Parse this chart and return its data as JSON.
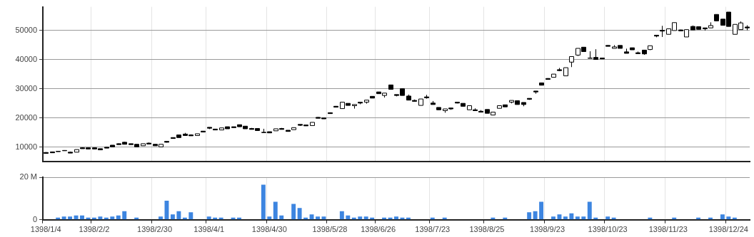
{
  "chart_data": [
    {
      "type": "candlestick",
      "color": "#000000",
      "colors": [
        "#000000",
        "#000000",
        "#000000",
        "#000000",
        "#000000",
        "#ffffff",
        "#000000",
        "#000000",
        "#000000",
        "#000000",
        "#000000",
        "#000000",
        "#000000",
        "#000000",
        "#000000",
        "#000000",
        "#ffffff",
        "#000000",
        "#000000",
        "#ffffff",
        "#000000",
        "#000000",
        "#000000",
        "#000000",
        "#000000",
        "#ffffff",
        "#000000",
        "#000000",
        "#000000",
        "#ffffff",
        "#000000",
        "#000000",
        "#000000",
        "#000000",
        "#000000",
        "#000000",
        "#000000",
        "#000000",
        "#ffffff",
        "#000000",
        "#000000",
        "#ffffff",
        "#000000",
        "#000000",
        "#ffffff",
        "#000000",
        "#000000",
        "#000000",
        "#000000",
        "#ffffff",
        "#000000",
        "#ffffff",
        "#000000",
        "#ffffff",
        "#000000",
        "#000000",
        "#ffffff",
        "#000000",
        "#000000",
        "#000000",
        "#000000",
        "#000000",
        "#ffffff",
        "#000000",
        "#000000",
        "#000000",
        "#ffffff",
        "#000000",
        "#000000",
        "#000000",
        "#ffffff",
        "#000000",
        "#000000",
        "#000000",
        "#ffffff",
        "#ffffff",
        "#000000",
        "#ffffff",
        "#000000",
        "#000000",
        "#000000",
        "#000000",
        "#000000",
        "#000000",
        "#ffffff",
        "#000000",
        "#ffffff",
        "#ffffff",
        "#ffffff",
        "#000000",
        "#000000",
        "#000000",
        "#000000",
        "#000000",
        "#ffffff",
        "#000000",
        "#000000",
        "#000000",
        "#000000",
        "#000000",
        "#ffffff",
        "#000000",
        "#000000",
        "#ffffff",
        "#ffffff",
        "#000000",
        "#ffffff",
        "#000000",
        "#000000",
        "#000000",
        "#ffffff",
        "#000000",
        "#000000",
        "#000000",
        "#ffffff",
        "#ffffff",
        "#000000"
      ],
      "ylim": [
        5000,
        58000
      ],
      "yticks": [
        10000,
        20000,
        30000,
        40000,
        50000
      ],
      "grid": true,
      "tick_labels": "y",
      "categories": [
        "1398/1/4",
        null,
        null,
        null,
        null,
        null,
        null,
        null,
        "1398/2/2",
        null,
        null,
        null,
        null,
        null,
        null,
        null,
        null,
        null,
        "1398/2/30",
        null,
        null,
        null,
        null,
        null,
        null,
        null,
        null,
        "1398/4/1",
        null,
        null,
        null,
        null,
        null,
        null,
        null,
        null,
        null,
        "1398/4/30",
        null,
        null,
        null,
        null,
        null,
        null,
        null,
        null,
        null,
        "1398/5/28",
        null,
        null,
        null,
        null,
        null,
        null,
        null,
        "1398/6/26",
        null,
        null,
        null,
        null,
        null,
        null,
        null,
        null,
        "1398/7/23",
        null,
        null,
        null,
        null,
        null,
        null,
        null,
        null,
        "1398/8/25",
        null,
        null,
        null,
        null,
        null,
        null,
        null,
        null,
        null,
        "1398/9/23",
        null,
        null,
        null,
        null,
        null,
        null,
        null,
        null,
        null,
        "1398/10/23",
        null,
        null,
        null,
        null,
        null,
        null,
        null,
        null,
        null,
        "1398/11/23",
        null,
        null,
        null,
        null,
        null,
        null,
        null,
        null,
        null,
        "1398/12/24",
        null,
        null,
        null
      ],
      "ohlc": [
        [
          8200,
          8300,
          7900,
          7900
        ],
        [
          8400,
          8500,
          8100,
          8100
        ],
        [
          8600,
          8700,
          8500,
          8500
        ],
        [
          8900,
          9000,
          8800,
          8800
        ],
        [
          8300,
          8500,
          8000,
          8000
        ],
        [
          8300,
          9200,
          8300,
          9200
        ],
        [
          9800,
          9900,
          9500,
          9500
        ],
        [
          9800,
          9800,
          9400,
          9400
        ],
        [
          9800,
          9800,
          9400,
          9400
        ],
        [
          9500,
          9500,
          9100,
          9100
        ],
        [
          10000,
          10100,
          9700,
          9700
        ],
        [
          10700,
          10700,
          10100,
          10100
        ],
        [
          11200,
          11300,
          10900,
          10900
        ],
        [
          11700,
          11800,
          11000,
          11000
        ],
        [
          11200,
          11200,
          10900,
          10900
        ],
        [
          11000,
          11000,
          10100,
          10100
        ],
        [
          10500,
          11200,
          10500,
          11200
        ],
        [
          11400,
          11600,
          11100,
          11100
        ],
        [
          11000,
          11000,
          10500,
          10500
        ],
        [
          10100,
          11000,
          10100,
          11000
        ],
        [
          12000,
          12000,
          11600,
          11700
        ],
        [
          13300,
          13300,
          13000,
          13000
        ],
        [
          14200,
          14200,
          13300,
          13300
        ],
        [
          14500,
          14900,
          14000,
          14000
        ],
        [
          14200,
          14400,
          13900,
          13900
        ],
        [
          14000,
          14600,
          14000,
          14600
        ],
        [
          15500,
          15500,
          15200,
          15200
        ],
        [
          16800,
          16800,
          16200,
          16500
        ],
        [
          16200,
          16200,
          15900,
          15900
        ],
        [
          15900,
          16600,
          15900,
          16600
        ],
        [
          17000,
          17000,
          16300,
          16300
        ],
        [
          17000,
          17000,
          16700,
          16700
        ],
        [
          17700,
          17700,
          17000,
          17000
        ],
        [
          17200,
          17200,
          16300,
          16300
        ],
        [
          16400,
          16600,
          16100,
          16100
        ],
        [
          16400,
          16400,
          15700,
          15700
        ],
        [
          15100,
          16300,
          15000,
          15000
        ],
        [
          15300,
          15300,
          14900,
          14900
        ],
        [
          15600,
          16300,
          15600,
          16300
        ],
        [
          16400,
          16600,
          16100,
          16100
        ],
        [
          15800,
          15800,
          15400,
          15400
        ],
        [
          16000,
          16700,
          16000,
          16700
        ],
        [
          17800,
          17800,
          17300,
          17500
        ],
        [
          17600,
          17600,
          17300,
          17300
        ],
        [
          17400,
          18500,
          17400,
          18500
        ],
        [
          20200,
          20300,
          19900,
          19900
        ],
        [
          20000,
          20000,
          19700,
          19700
        ],
        [
          21800,
          21900,
          21500,
          21500
        ],
        [
          24000,
          24100,
          23700,
          23700
        ],
        [
          23200,
          25400,
          23200,
          25400
        ],
        [
          25000,
          25000,
          24300,
          24300
        ],
        [
          24200,
          24600,
          23200,
          24600
        ],
        [
          25400,
          25400,
          24700,
          25100
        ],
        [
          25400,
          26100,
          24900,
          26100
        ],
        [
          27400,
          27400,
          26800,
          26800
        ],
        [
          28900,
          28900,
          28300,
          28300
        ],
        [
          27700,
          28500,
          27000,
          28500
        ],
        [
          31300,
          31300,
          29800,
          29800
        ],
        [
          28000,
          28000,
          27400,
          27700
        ],
        [
          30000,
          30000,
          27700,
          27700
        ],
        [
          27500,
          28000,
          26100,
          26100
        ],
        [
          26000,
          26300,
          25700,
          25700
        ],
        [
          24300,
          26500,
          24300,
          26500
        ],
        [
          27200,
          27900,
          26600,
          26900
        ],
        [
          25100,
          25800,
          24600,
          24600
        ],
        [
          23600,
          23600,
          22800,
          22800
        ],
        [
          22500,
          23100,
          21800,
          23100
        ],
        [
          23400,
          23400,
          22800,
          23100
        ],
        [
          25400,
          25400,
          25000,
          25100
        ],
        [
          25000,
          25000,
          24000,
          24000
        ],
        [
          22800,
          24200,
          22800,
          24200
        ],
        [
          22800,
          23300,
          22500,
          22500
        ],
        [
          22300,
          22700,
          21900,
          22000
        ],
        [
          22900,
          22900,
          21600,
          21600
        ],
        [
          21000,
          22000,
          21000,
          22000
        ],
        [
          23300,
          24200,
          23300,
          24200
        ],
        [
          24500,
          24500,
          23800,
          23800
        ],
        [
          25400,
          26000,
          25000,
          26000
        ],
        [
          25900,
          25900,
          24600,
          24600
        ],
        [
          25300,
          25300,
          24000,
          24600
        ],
        [
          26700,
          26700,
          26200,
          26400
        ],
        [
          29200,
          29200,
          28300,
          28900
        ],
        [
          32000,
          32000,
          31200,
          31200
        ],
        [
          33500,
          33600,
          33200,
          33200
        ],
        [
          33900,
          35000,
          33900,
          35000
        ],
        [
          36500,
          37100,
          36000,
          36200
        ],
        [
          34400,
          37200,
          34400,
          37200
        ],
        [
          39100,
          41000,
          37400,
          41000
        ],
        [
          41500,
          43800,
          41200,
          43800
        ],
        [
          44200,
          44200,
          42700,
          42700
        ],
        [
          40500,
          42800,
          40400,
          40400
        ],
        [
          40700,
          43500,
          40000,
          40000
        ],
        [
          40500,
          40600,
          40200,
          40200
        ],
        [
          44800,
          44900,
          44500,
          44500
        ],
        [
          43800,
          44900,
          43800,
          44300
        ],
        [
          44800,
          44800,
          43800,
          43800
        ],
        [
          42600,
          43700,
          42100,
          42100
        ],
        [
          44000,
          44000,
          43300,
          43300
        ],
        [
          42300,
          42700,
          41900,
          42000
        ],
        [
          43200,
          43200,
          41600,
          41900
        ],
        [
          43400,
          44700,
          43200,
          44700
        ],
        [
          48300,
          48300,
          47600,
          48000
        ],
        [
          50000,
          51500,
          47700,
          49700
        ],
        [
          48600,
          50500,
          48600,
          50500
        ],
        [
          49900,
          52600,
          49900,
          52600
        ],
        [
          50100,
          50200,
          49800,
          49800
        ],
        [
          47700,
          50200,
          47700,
          50200
        ],
        [
          51300,
          51600,
          50100,
          50100
        ],
        [
          51200,
          51200,
          50300,
          50300
        ],
        [
          50800,
          50800,
          49900,
          50500
        ],
        [
          50800,
          52700,
          50800,
          51600
        ],
        [
          55400,
          55400,
          53200,
          53200
        ],
        [
          53800,
          53800,
          51700,
          51700
        ],
        [
          56200,
          56200,
          51300,
          51300
        ],
        [
          48600,
          52000,
          48600,
          52000
        ],
        [
          50200,
          53000,
          50200,
          52500
        ],
        [
          51100,
          51700,
          50000,
          50800
        ]
      ]
    },
    {
      "type": "bar",
      "color": "#3d85e0",
      "ylim": [
        0,
        20000000
      ],
      "yticks": [
        0,
        {
          "value": 20000000,
          "label": "20 M"
        }
      ],
      "grid": true,
      "categories": [
        "1398/1/4",
        null,
        null,
        null,
        null,
        null,
        null,
        null,
        "1398/2/2",
        null,
        null,
        null,
        null,
        null,
        null,
        null,
        null,
        null,
        "1398/2/30",
        null,
        null,
        null,
        null,
        null,
        null,
        null,
        null,
        "1398/4/1",
        null,
        null,
        null,
        null,
        null,
        null,
        null,
        null,
        null,
        "1398/4/30",
        null,
        null,
        null,
        null,
        null,
        null,
        null,
        null,
        null,
        "1398/5/28",
        null,
        null,
        null,
        null,
        null,
        null,
        null,
        "1398/6/26",
        null,
        null,
        null,
        null,
        null,
        null,
        null,
        null,
        "1398/7/23",
        null,
        null,
        null,
        null,
        null,
        null,
        null,
        null,
        "1398/8/25",
        null,
        null,
        null,
        null,
        null,
        null,
        null,
        null,
        null,
        "1398/9/23",
        null,
        null,
        null,
        null,
        null,
        null,
        null,
        null,
        null,
        "1398/10/23",
        null,
        null,
        null,
        null,
        null,
        null,
        null,
        null,
        null,
        "1398/11/23",
        null,
        null,
        null,
        null,
        null,
        null,
        null,
        null,
        null,
        "1398/12/24",
        null,
        null,
        null
      ],
      "values": [
        0,
        0,
        1000000,
        1500000,
        1500000,
        2000000,
        2000000,
        1000000,
        1000000,
        1500000,
        1000000,
        1500000,
        2000000,
        4000000,
        0,
        1000000,
        0,
        0,
        0,
        1500000,
        9000000,
        2500000,
        4000000,
        1000000,
        3500000,
        0,
        0,
        1500000,
        1000000,
        1000000,
        0,
        1000000,
        1000000,
        0,
        0,
        0,
        16500000,
        1500000,
        8500000,
        2000000,
        0,
        7500000,
        5500000,
        1000000,
        2500000,
        1500000,
        1500000,
        0,
        0,
        4000000,
        2000000,
        1000000,
        1500000,
        1500000,
        1000000,
        0,
        1000000,
        1000000,
        1500000,
        1000000,
        1000000,
        0,
        0,
        0,
        1000000,
        0,
        1000000,
        0,
        0,
        0,
        0,
        0,
        0,
        0,
        1000000,
        0,
        1000000,
        0,
        0,
        0,
        3500000,
        4000000,
        8500000,
        0,
        1500000,
        2500000,
        1500000,
        3000000,
        1500000,
        1500000,
        8500000,
        1000000,
        0,
        1500000,
        1000000,
        0,
        0,
        0,
        0,
        0,
        1000000,
        0,
        0,
        0,
        1000000,
        0,
        0,
        0,
        1000000,
        0,
        1000000,
        0,
        2500000,
        1500000,
        1000000,
        0,
        0
      ]
    }
  ]
}
